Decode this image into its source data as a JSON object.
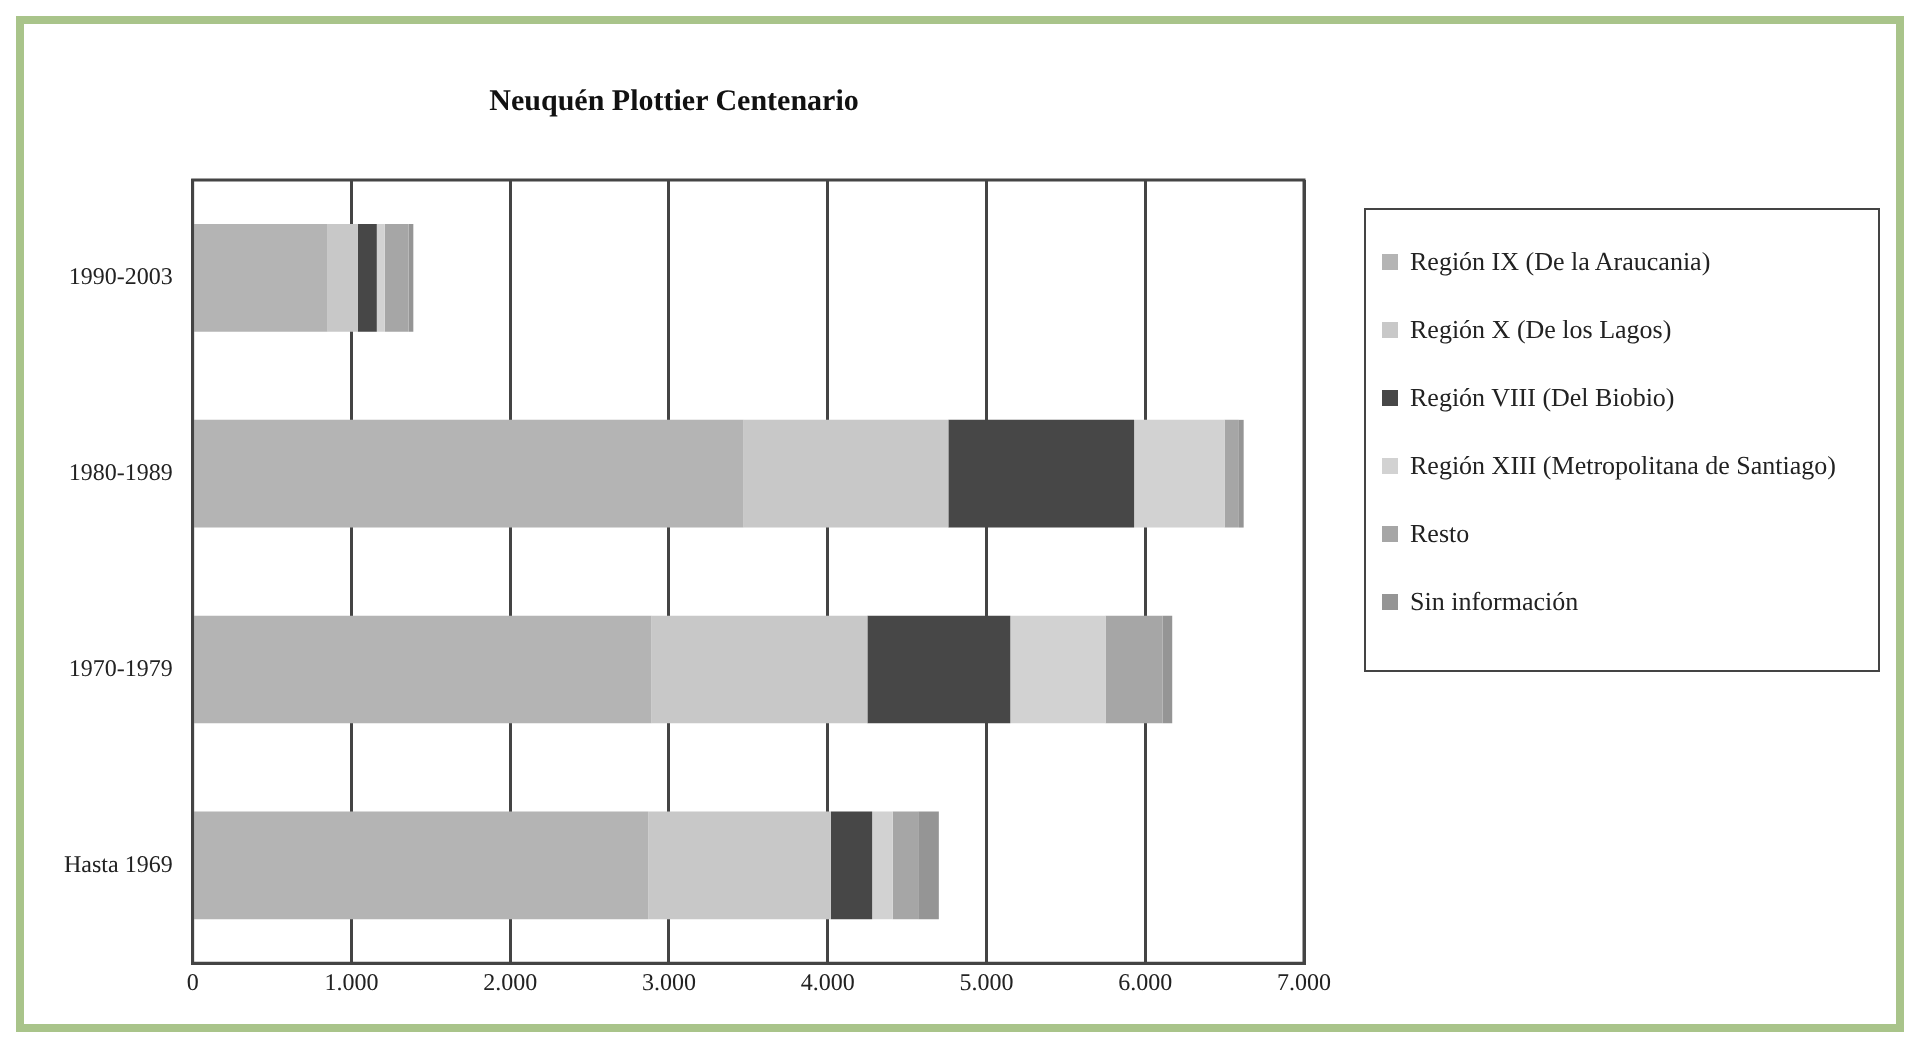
{
  "chart_data": {
    "type": "bar",
    "orientation": "horizontal",
    "stacked": true,
    "title": "Neuquén Plottier Centenario",
    "categories": [
      "1990-2003",
      "1980-1989",
      "1970-1979",
      "Hasta 1969"
    ],
    "series": [
      {
        "name": "Región IX (De la Araucania)",
        "color": "#b4b4b4",
        "values": [
          850,
          3470,
          2890,
          2870
        ]
      },
      {
        "name": "Región X (De los Lagos)",
        "color": "#c8c8c8",
        "values": [
          190,
          1290,
          1360,
          1150
        ]
      },
      {
        "name": "Región VIII (Del Biobio)",
        "color": "#474747",
        "values": [
          120,
          1170,
          900,
          260
        ]
      },
      {
        "name": "Región XIII (Metropolitana de Santiago)",
        "color": "#d2d2d2",
        "values": [
          50,
          570,
          600,
          130
        ]
      },
      {
        "name": "Resto",
        "color": "#a6a6a6",
        "values": [
          150,
          90,
          360,
          160
        ]
      },
      {
        "name": "Sin información",
        "color": "#959595",
        "values": [
          30,
          30,
          60,
          130
        ]
      }
    ],
    "xlim": [
      0,
      7000
    ],
    "xticks": [
      0,
      {
        "value": 1000,
        "label": "1.000"
      },
      {
        "value": 2000,
        "label": "2.000"
      },
      {
        "value": 3000,
        "label": "3.000"
      },
      {
        "value": 4000,
        "label": "4.000"
      },
      {
        "value": 5000,
        "label": "5.000"
      },
      {
        "value": 6000,
        "label": "6.000"
      },
      {
        "value": 7000,
        "label": "7.000"
      }
    ],
    "grid": "x",
    "legend": "right"
  }
}
